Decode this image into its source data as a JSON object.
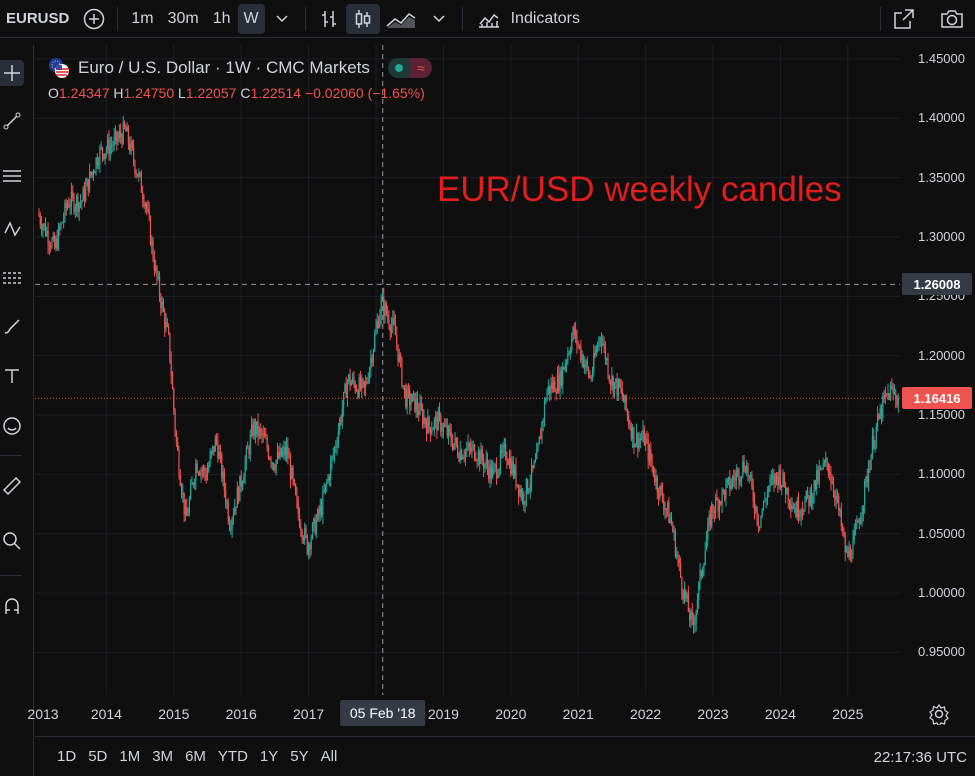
{
  "toolbar": {
    "symbol": "EURUSD",
    "intervals": [
      "1m",
      "30m",
      "1h",
      "W"
    ],
    "active_interval": "W",
    "indicators_label": "Indicators"
  },
  "legend": {
    "title": "Euro / U.S. Dollar · 1W · CMC Markets",
    "open_label": "O",
    "open": "1.24347",
    "high_label": "H",
    "high": "1.24750",
    "low_label": "L",
    "low": "1.22057",
    "close_label": "C",
    "close": "1.22514",
    "change": "−0.02060 (−1.65%)",
    "value_color": "#ef5350"
  },
  "annotation": "EUR/USD weekly candles",
  "colors": {
    "up": "#26a69a",
    "down": "#ef5350",
    "accent_text": "#e11d1d"
  },
  "crosshair_price": "1.26008",
  "current_price": "1.16416",
  "crosshair_date": "05 Feb '18",
  "price_ticks": [
    "1.45000",
    "1.40000",
    "1.35000",
    "1.30000",
    "1.25000",
    "1.20000",
    "1.15000",
    "1.10000",
    "1.05000",
    "1.00000",
    "0.95000"
  ],
  "time_ticks": [
    "2013",
    "2014",
    "2015",
    "2016",
    "2017",
    "2019",
    "2020",
    "2021",
    "2022",
    "2023",
    "2024",
    "2025"
  ],
  "ranges": [
    "1D",
    "5D",
    "1M",
    "3M",
    "6M",
    "YTD",
    "1Y",
    "5Y",
    "All"
  ],
  "clock": "22:17:36 UTC",
  "chart_data": {
    "type": "candlestick",
    "title": "EUR/USD weekly candles",
    "interval": "1W",
    "ylim": [
      0.93,
      1.455
    ],
    "x_range": [
      2013.0,
      2025.85
    ],
    "path": [
      [
        2013.0,
        1.32
      ],
      [
        2013.25,
        1.29
      ],
      [
        2013.45,
        1.33
      ],
      [
        2013.65,
        1.33
      ],
      [
        2013.9,
        1.37
      ],
      [
        2014.15,
        1.38
      ],
      [
        2014.3,
        1.39
      ],
      [
        2014.45,
        1.36
      ],
      [
        2014.6,
        1.33
      ],
      [
        2014.75,
        1.27
      ],
      [
        2014.95,
        1.21
      ],
      [
        2015.05,
        1.13
      ],
      [
        2015.2,
        1.06
      ],
      [
        2015.35,
        1.11
      ],
      [
        2015.5,
        1.1
      ],
      [
        2015.65,
        1.13
      ],
      [
        2015.85,
        1.06
      ],
      [
        2016.0,
        1.09
      ],
      [
        2016.2,
        1.14
      ],
      [
        2016.35,
        1.13
      ],
      [
        2016.5,
        1.11
      ],
      [
        2016.7,
        1.12
      ],
      [
        2016.85,
        1.07
      ],
      [
        2017.0,
        1.04
      ],
      [
        2017.2,
        1.07
      ],
      [
        2017.4,
        1.12
      ],
      [
        2017.6,
        1.18
      ],
      [
        2017.85,
        1.17
      ],
      [
        2018.1,
        1.245
      ],
      [
        2018.3,
        1.22
      ],
      [
        2018.45,
        1.165
      ],
      [
        2018.6,
        1.16
      ],
      [
        2018.8,
        1.14
      ],
      [
        2018.95,
        1.145
      ],
      [
        2019.25,
        1.12
      ],
      [
        2019.5,
        1.12
      ],
      [
        2019.75,
        1.1
      ],
      [
        2019.95,
        1.12
      ],
      [
        2020.2,
        1.08
      ],
      [
        2020.4,
        1.11
      ],
      [
        2020.55,
        1.17
      ],
      [
        2020.75,
        1.18
      ],
      [
        2020.95,
        1.22
      ],
      [
        2021.2,
        1.18
      ],
      [
        2021.35,
        1.22
      ],
      [
        2021.5,
        1.18
      ],
      [
        2021.65,
        1.17
      ],
      [
        2021.85,
        1.13
      ],
      [
        2022.0,
        1.13
      ],
      [
        2022.2,
        1.09
      ],
      [
        2022.4,
        1.06
      ],
      [
        2022.55,
        1.01
      ],
      [
        2022.72,
        0.97
      ],
      [
        2022.85,
        1.02
      ],
      [
        2023.0,
        1.07
      ],
      [
        2023.25,
        1.09
      ],
      [
        2023.5,
        1.11
      ],
      [
        2023.7,
        1.06
      ],
      [
        2023.85,
        1.09
      ],
      [
        2024.0,
        1.1
      ],
      [
        2024.25,
        1.07
      ],
      [
        2024.45,
        1.08
      ],
      [
        2024.6,
        1.1
      ],
      [
        2024.72,
        1.11
      ],
      [
        2024.85,
        1.08
      ],
      [
        2025.0,
        1.03
      ],
      [
        2025.1,
        1.04
      ],
      [
        2025.25,
        1.08
      ],
      [
        2025.4,
        1.13
      ],
      [
        2025.55,
        1.16
      ],
      [
        2025.65,
        1.17
      ],
      [
        2025.75,
        1.165
      ]
    ]
  }
}
